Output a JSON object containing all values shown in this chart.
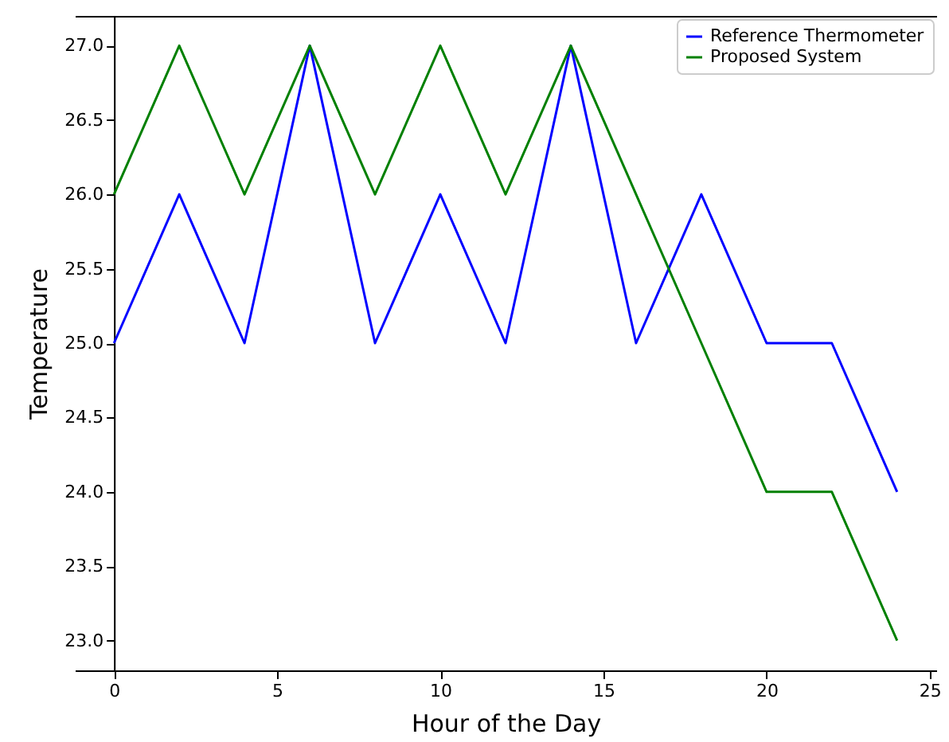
{
  "chart_data": {
    "type": "line",
    "xlabel": "Hour of the Day",
    "ylabel": "Temperature",
    "x": [
      0,
      2,
      4,
      6,
      8,
      10,
      12,
      14,
      16,
      18,
      20,
      22,
      24
    ],
    "series": [
      {
        "name": "Reference Thermometer",
        "color": "#0000ff",
        "values": [
          25,
          26,
          25,
          27,
          25,
          26,
          25,
          27,
          25,
          26,
          25,
          25,
          24
        ]
      },
      {
        "name": "Proposed System",
        "color": "#008000",
        "values": [
          26,
          27,
          26,
          27,
          26,
          27,
          26,
          27,
          26,
          25,
          24,
          24,
          23
        ]
      }
    ],
    "xlim": [
      -1.2,
      25.2
    ],
    "xticks": [
      0,
      5,
      10,
      15,
      20,
      25
    ],
    "ylim": [
      22.8,
      27.2
    ],
    "yticks": [
      {
        "value": 23,
        "label": "23.0"
      },
      {
        "value": 23.5,
        "label": "23.5"
      },
      {
        "value": 24,
        "label": "24.0"
      },
      {
        "value": 24.5,
        "label": "24.5"
      },
      {
        "value": 25,
        "label": "25.0"
      },
      {
        "value": 25.5,
        "label": "25.5"
      },
      {
        "value": 26,
        "label": "26.0"
      },
      {
        "value": 26.5,
        "label": "26.5"
      },
      {
        "value": 27,
        "label": "27.0"
      }
    ],
    "legend": "top right",
    "grid": false,
    "marker": "none",
    "line_style": "solid"
  }
}
